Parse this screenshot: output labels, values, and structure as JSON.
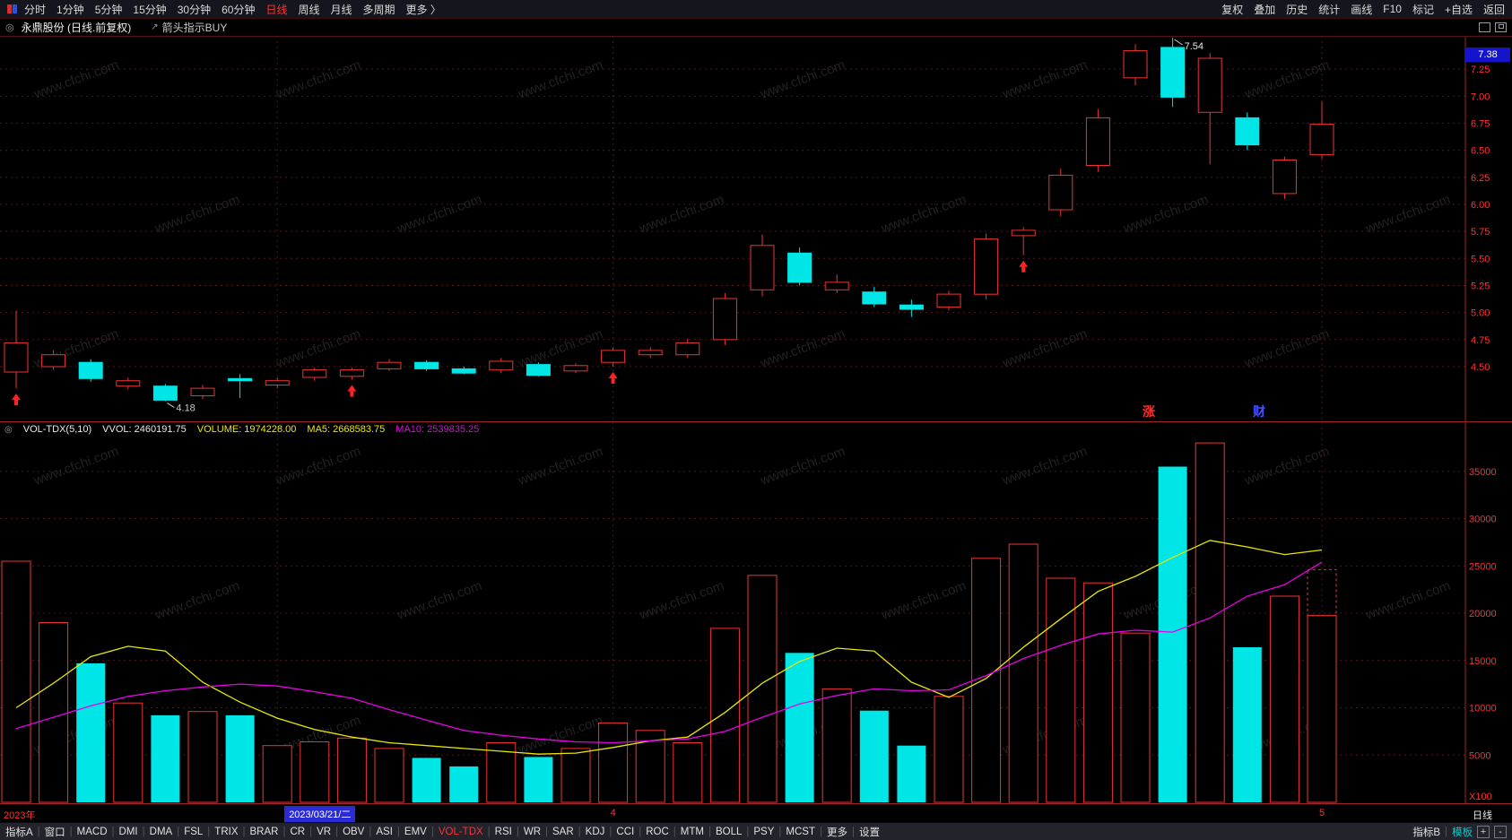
{
  "watermark": "www.cfchi.com",
  "top_toolbar": {
    "periods": [
      {
        "key": "fenshi",
        "label": "分时"
      },
      {
        "key": "1min",
        "label": "1分钟"
      },
      {
        "key": "5min",
        "label": "5分钟"
      },
      {
        "key": "15min",
        "label": "15分钟"
      },
      {
        "key": "30min",
        "label": "30分钟"
      },
      {
        "key": "60min",
        "label": "60分钟"
      },
      {
        "key": "day",
        "label": "日线",
        "active": true
      },
      {
        "key": "week",
        "label": "周线"
      },
      {
        "key": "month",
        "label": "月线"
      },
      {
        "key": "multi-period",
        "label": "多周期"
      },
      {
        "key": "more",
        "label": "更多 〉"
      }
    ],
    "tools": [
      {
        "key": "adjust",
        "label": "复权"
      },
      {
        "key": "overlay",
        "label": "叠加"
      },
      {
        "key": "history",
        "label": "历史"
      },
      {
        "key": "statistics",
        "label": "统计"
      },
      {
        "key": "draw-line",
        "label": "画线"
      },
      {
        "key": "f10",
        "label": "F10"
      },
      {
        "key": "mark",
        "label": "标记"
      },
      {
        "key": "add-watchlist",
        "label": "+自选"
      },
      {
        "key": "back",
        "label": "返回"
      }
    ]
  },
  "title_bar": {
    "title": "永鼎股份 (日线.前复权)",
    "indicator": "箭头指示BUY"
  },
  "vol_info": {
    "name": "VOL-TDX(5,10)",
    "vvol": "VVOL: 2460191.75",
    "volume": "VOLUME: 1974228.00",
    "ma5": "MA5: 2668583.75",
    "ma10": "MA10: 2539835.25"
  },
  "date_axis": {
    "year_label": "2023年",
    "highlight_date": "2023/03/21/二",
    "highlight_index": 7,
    "month_labels": [
      {
        "text": "4",
        "index": 16
      },
      {
        "text": "5",
        "index": 35
      }
    ],
    "grid_indexes": [
      7,
      16,
      35
    ],
    "period_label": "日线"
  },
  "floating_labels": [
    {
      "text": "涨",
      "color": "#ff3232",
      "x": 1274
    },
    {
      "text": "财",
      "color": "#4455ff",
      "x": 1397
    }
  ],
  "bottom_toolbar": {
    "items": [
      {
        "key": "indicator-a",
        "label": "指标A"
      },
      {
        "key": "window",
        "label": "窗口"
      },
      {
        "key": "macd",
        "label": "MACD"
      },
      {
        "key": "dmi",
        "label": "DMI"
      },
      {
        "key": "dma",
        "label": "DMA"
      },
      {
        "key": "fsl",
        "label": "FSL"
      },
      {
        "key": "trix",
        "label": "TRIX"
      },
      {
        "key": "brar",
        "label": "BRAR"
      },
      {
        "key": "cr",
        "label": "CR"
      },
      {
        "key": "vr",
        "label": "VR"
      },
      {
        "key": "obv",
        "label": "OBV"
      },
      {
        "key": "asi",
        "label": "ASI"
      },
      {
        "key": "emv",
        "label": "EMV"
      },
      {
        "key": "vol-tdx",
        "label": "VOL-TDX",
        "active": true
      },
      {
        "key": "rsi",
        "label": "RSI"
      },
      {
        "key": "wr",
        "label": "WR"
      },
      {
        "key": "sar",
        "label": "SAR"
      },
      {
        "key": "kdj",
        "label": "KDJ"
      },
      {
        "key": "cci",
        "label": "CCI"
      },
      {
        "key": "roc",
        "label": "ROC"
      },
      {
        "key": "mtm",
        "label": "MTM"
      },
      {
        "key": "boll",
        "label": "BOLL"
      },
      {
        "key": "psy",
        "label": "PSY"
      },
      {
        "key": "mcst",
        "label": "MCST"
      },
      {
        "key": "more",
        "label": "更多"
      },
      {
        "key": "settings",
        "label": "设置"
      }
    ],
    "right_items": [
      {
        "key": "indicator-b",
        "label": "指标B"
      },
      {
        "key": "template",
        "label": "模板",
        "color": "#00d0d0"
      }
    ],
    "zoom_in": "+",
    "zoom_out": "-"
  },
  "colors": {
    "up": "#ee3333",
    "down": "#00e5e5",
    "ma5": "#e8e800",
    "ma10": "#e800e8",
    "axis_text": "#ff3232",
    "grid": "#5a1414",
    "frame": "#a02525",
    "watermark": "#4a4a4a",
    "price_box_bg": "#1414cc",
    "date_highlight_bg": "#2b2bd5",
    "buy_arrow": "#ff2222"
  },
  "chart_data": [
    {
      "type": "candlestick",
      "title": "永鼎股份 日线 前复权",
      "current_price": "7.38",
      "price_axis_ticks": [
        "7.25",
        "7.00",
        "6.75",
        "6.50",
        "6.25",
        "6.00",
        "5.75",
        "5.50",
        "5.25",
        "5.00",
        "4.75",
        "4.50"
      ],
      "ylim": [
        4.1,
        7.6
      ],
      "high_annotation": {
        "index": 31,
        "text": "7.54"
      },
      "low_annotation": {
        "index": 4,
        "text": "4.18"
      },
      "buy_arrow_indexes": [
        0,
        9,
        16,
        27
      ],
      "candles_ohlc": [
        [
          4.45,
          5.02,
          4.3,
          4.72
        ],
        [
          4.5,
          4.65,
          4.47,
          4.61
        ],
        [
          4.54,
          4.57,
          4.36,
          4.39
        ],
        [
          4.32,
          4.4,
          4.29,
          4.37
        ],
        [
          4.32,
          4.34,
          4.18,
          4.19
        ],
        [
          4.23,
          4.33,
          4.2,
          4.3
        ],
        [
          4.39,
          4.43,
          4.21,
          4.37
        ],
        [
          4.33,
          4.4,
          4.3,
          4.37
        ],
        [
          4.4,
          4.49,
          4.37,
          4.47
        ],
        [
          4.41,
          4.49,
          4.38,
          4.47
        ],
        [
          4.48,
          4.57,
          4.46,
          4.54
        ],
        [
          4.54,
          4.56,
          4.46,
          4.48
        ],
        [
          4.48,
          4.5,
          4.43,
          4.44
        ],
        [
          4.47,
          4.58,
          4.44,
          4.55
        ],
        [
          4.52,
          4.54,
          4.41,
          4.42
        ],
        [
          4.46,
          4.53,
          4.44,
          4.51
        ],
        [
          4.54,
          4.68,
          4.5,
          4.65
        ],
        [
          4.61,
          4.68,
          4.58,
          4.65
        ],
        [
          4.61,
          4.76,
          4.58,
          4.72
        ],
        [
          4.75,
          5.18,
          4.7,
          5.13
        ],
        [
          5.21,
          5.72,
          5.15,
          5.62
        ],
        [
          5.55,
          5.6,
          5.25,
          5.28
        ],
        [
          5.21,
          5.35,
          5.18,
          5.28
        ],
        [
          5.19,
          5.24,
          5.05,
          5.08
        ],
        [
          5.07,
          5.12,
          4.96,
          5.03
        ],
        [
          5.05,
          5.2,
          5.02,
          5.17
        ],
        [
          5.17,
          5.73,
          5.12,
          5.68
        ],
        [
          5.71,
          5.79,
          5.53,
          5.76
        ],
        [
          5.95,
          6.33,
          5.89,
          6.27
        ],
        [
          6.36,
          6.88,
          6.3,
          6.8
        ],
        [
          7.17,
          7.48,
          7.1,
          7.42
        ],
        [
          7.45,
          7.54,
          6.9,
          6.99
        ],
        [
          6.85,
          7.4,
          6.37,
          7.35
        ],
        [
          6.8,
          6.85,
          6.5,
          6.55
        ],
        [
          6.1,
          6.44,
          6.05,
          6.41
        ],
        [
          6.46,
          6.95,
          6.42,
          6.74
        ]
      ]
    },
    {
      "type": "bar",
      "title": "VOL-TDX(5,10)",
      "unit": "X100",
      "y_ticks": [
        35000,
        30000,
        25000,
        20000,
        15000,
        10000,
        5000
      ],
      "ylim": [
        0,
        40000
      ],
      "legend": [
        "VOLUME",
        "MA5",
        "MA10"
      ],
      "values": [
        25500,
        19000,
        14700,
        10500,
        9200,
        9600,
        9200,
        6000,
        6400,
        6800,
        5700,
        4700,
        3800,
        6300,
        4800,
        5700,
        8400,
        7600,
        6300,
        18400,
        24000,
        15800,
        12000,
        9700,
        6000,
        11200,
        25800,
        27300,
        23700,
        23200,
        17900,
        35500,
        38000,
        16400,
        21800,
        19742
      ],
      "ma5": [
        10000,
        12600,
        15400,
        16500,
        16000,
        12700,
        10600,
        8900,
        7700,
        6900,
        6300,
        6000,
        5700,
        5400,
        5100,
        5200,
        5800,
        6500,
        6900,
        9500,
        12600,
        14900,
        16300,
        16000,
        12700,
        11100,
        13100,
        16400,
        19400,
        22300,
        23900,
        25900,
        27700,
        27000,
        26200,
        26686
      ],
      "ma10": [
        7800,
        9000,
        10200,
        11200,
        11800,
        12200,
        12500,
        12300,
        11700,
        11000,
        9800,
        8700,
        7600,
        7100,
        6700,
        6400,
        6300,
        6500,
        6700,
        7500,
        9000,
        10400,
        11300,
        12000,
        11800,
        11900,
        13400,
        15200,
        16600,
        17800,
        18200,
        18000,
        19500,
        21800,
        23000,
        25398
      ],
      "vvol_estimate": 24602
    }
  ]
}
